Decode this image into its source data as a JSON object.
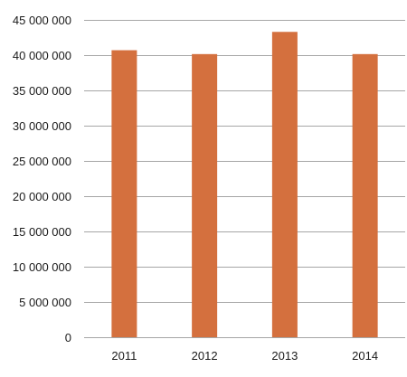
{
  "chart_data": {
    "type": "bar",
    "title": "",
    "xlabel": "",
    "ylabel": "",
    "categories": [
      "2011",
      "2012",
      "2013",
      "2014"
    ],
    "values": [
      40700000,
      40150000,
      43300000,
      40150000
    ],
    "ylim": [
      0,
      45000000
    ],
    "yticks": [
      0,
      5000000,
      10000000,
      15000000,
      20000000,
      25000000,
      30000000,
      35000000,
      40000000,
      45000000
    ],
    "ytick_labels": [
      "0",
      "5 000 000",
      "10 000 000",
      "15 000 000",
      "20 000 000",
      "25 000 000",
      "30 000 000",
      "35 000 000",
      "40 000 000",
      "45 000 000"
    ],
    "grid": true,
    "legend": "none",
    "bar_color": "#d4703e"
  }
}
